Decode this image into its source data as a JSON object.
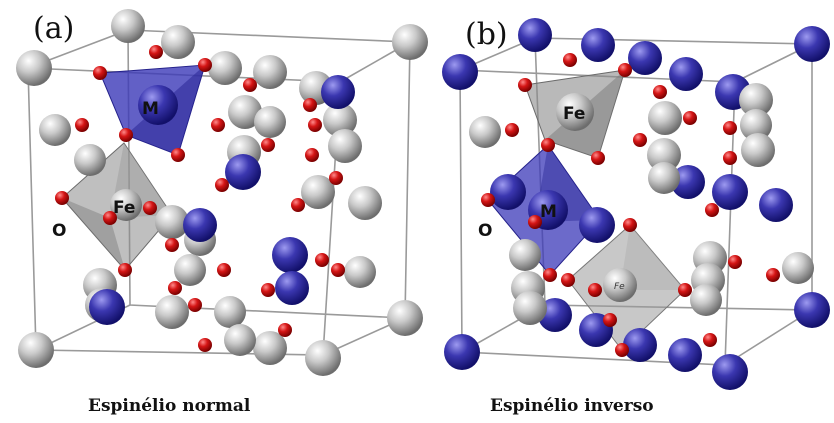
{
  "panels": [
    {
      "letter": "(a)",
      "caption": "Espinélio normal",
      "atom_labels": {
        "tetra": "M",
        "octa": "Fe",
        "oxygen": "O"
      }
    },
    {
      "letter": "(b)",
      "caption": "Espinélio inverso",
      "atom_labels": {
        "tetra": "Fe",
        "octa": "M",
        "octa2": "Fe",
        "oxygen": "O"
      }
    }
  ],
  "colors": {
    "fe_atom": "#b8b8b8",
    "m_atom": "#3a36a8",
    "o_atom": "#d41414",
    "polyhedron_m": "#3b38b8",
    "polyhedron_fe": "#8a8a8a",
    "cell_edges": "#9a9a9a"
  }
}
